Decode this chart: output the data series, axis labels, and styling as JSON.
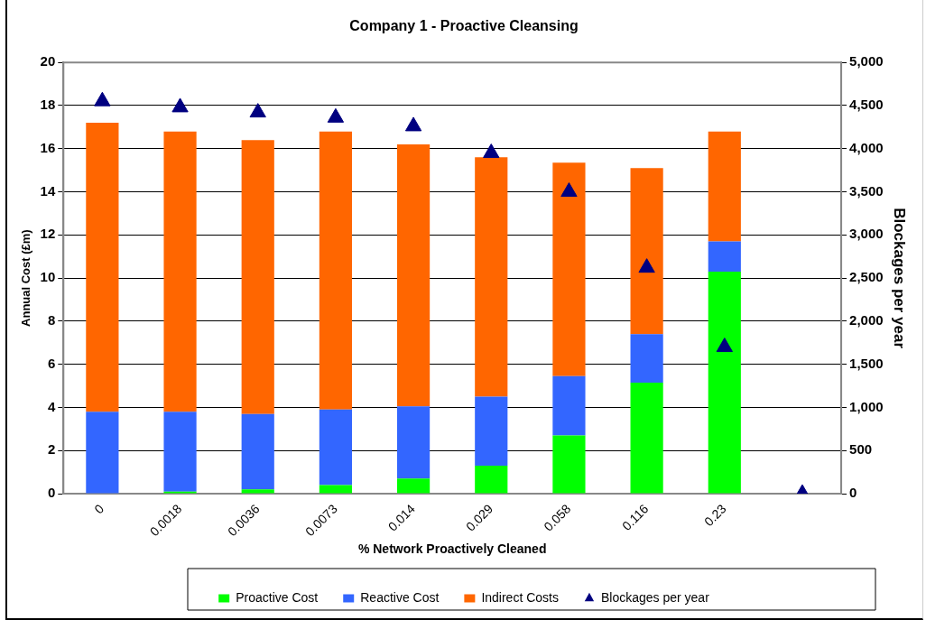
{
  "chart_data": {
    "type": "bar",
    "title": "Company 1 - Proactive Cleansing",
    "xlabel": "% Network Proactively Cleaned",
    "ylabel": "Annual Cost (£m)",
    "y2label": "Blockages per year",
    "categories": [
      "0",
      "0.0018",
      "0.0036",
      "0.0073",
      "0.014",
      "0.029",
      "0.058",
      "0.116",
      "0.23",
      null
    ],
    "stacked": true,
    "ylim": [
      0,
      20
    ],
    "yticks": [
      0,
      2,
      4,
      6,
      8,
      10,
      12,
      14,
      16,
      18,
      20
    ],
    "y2lim": [
      0,
      5000
    ],
    "y2ticks": [
      {
        "value": 0,
        "label": "0"
      },
      {
        "value": 500,
        "label": "500"
      },
      {
        "value": 1000,
        "label": "1,000"
      },
      {
        "value": 1500,
        "label": "1,500"
      },
      {
        "value": 2000,
        "label": "2,000"
      },
      {
        "value": 2500,
        "label": "2,500"
      },
      {
        "value": 3000,
        "label": "3,000"
      },
      {
        "value": 3500,
        "label": "3,500"
      },
      {
        "value": 4000,
        "label": "4,000"
      },
      {
        "value": 4500,
        "label": "4,500"
      },
      {
        "value": 5000,
        "label": "5,000"
      }
    ],
    "grid": "y",
    "legend": "bottom",
    "series": [
      {
        "name": "Proactive Cost",
        "color": "#00ff00",
        "values": [
          0,
          0.1,
          0.2,
          0.4,
          0.7,
          1.3,
          2.7,
          5.15,
          10.3,
          null
        ]
      },
      {
        "name": "Reactive Cost",
        "color": "#3366ff",
        "values": [
          3.8,
          3.7,
          3.5,
          3.5,
          3.35,
          3.2,
          2.75,
          2.25,
          1.4,
          null
        ]
      },
      {
        "name": "Indirect Costs",
        "color": "#ff6600",
        "values": [
          13.4,
          13.0,
          12.7,
          12.9,
          12.15,
          11.1,
          9.9,
          7.7,
          5.1,
          null
        ]
      },
      {
        "name": "Blockages per year",
        "color": "#000080",
        "type": "scatter",
        "axis": "y2",
        "marker": "triangle",
        "values": [
          4550,
          4480,
          4420,
          4360,
          4260,
          3950,
          3500,
          2620,
          1700,
          0
        ]
      }
    ]
  }
}
